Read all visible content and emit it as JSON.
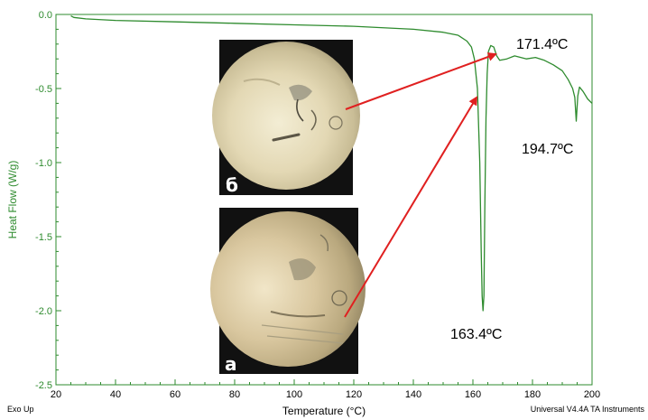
{
  "chart_data": {
    "type": "line",
    "xlabel": "Temperature (°C)",
    "ylabel": "Heat Flow (W/g)",
    "xlim": [
      20,
      200
    ],
    "ylim": [
      -2.5,
      0.0
    ],
    "x_ticks": [
      20,
      40,
      60,
      80,
      100,
      120,
      140,
      160,
      180,
      200
    ],
    "y_ticks": [
      0.0,
      -0.5,
      -1.0,
      -1.5,
      -2.0,
      -2.5
    ],
    "y_tick_labels": [
      "0.0",
      "-0.5",
      "-1.0",
      "-1.5",
      "-2.0",
      "-2.5"
    ],
    "grid": false,
    "series": [
      {
        "color": "#2e8b2e",
        "x": [
          25,
          26,
          30,
          40,
          60,
          80,
          100,
          120,
          140,
          150,
          155,
          158,
          159.5,
          160.5,
          161.5,
          162.3,
          162.8,
          163.1,
          163.4,
          163.7,
          164.0,
          164.4,
          164.8,
          165.2,
          166.0,
          167.0,
          168.0,
          169.0,
          171.4,
          174.0,
          178.0,
          181.0,
          184.0,
          187.0,
          190.0,
          192.0,
          193.5,
          194.2,
          194.7,
          195.2,
          195.8,
          197.0,
          198.5,
          200.0
        ],
        "y": [
          -0.01,
          -0.02,
          -0.03,
          -0.04,
          -0.05,
          -0.06,
          -0.07,
          -0.08,
          -0.1,
          -0.12,
          -0.14,
          -0.18,
          -0.22,
          -0.3,
          -0.5,
          -1.0,
          -1.6,
          -1.9,
          -2.0,
          -1.9,
          -1.3,
          -0.7,
          -0.4,
          -0.25,
          -0.21,
          -0.22,
          -0.28,
          -0.31,
          -0.3,
          -0.28,
          -0.3,
          -0.29,
          -0.31,
          -0.34,
          -0.38,
          -0.44,
          -0.5,
          -0.56,
          -0.72,
          -0.55,
          -0.49,
          -0.52,
          -0.57,
          -0.6
        ]
      }
    ],
    "annotations": [
      {
        "label": "171.4ºC",
        "x": 171.4,
        "y": -0.28
      },
      {
        "label": "163.4ºC",
        "x": 163.4,
        "y": -2.0
      },
      {
        "label": "194.7ºC",
        "x": 194.7,
        "y": -0.72
      }
    ],
    "inset_labels": [
      "б",
      "а"
    ],
    "footer_left": "Exo Up",
    "footer_right": "Universal V4.4A TA Instruments"
  },
  "colors": {
    "curve": "#2e8b2e",
    "axis": "#2e8b2e",
    "arrow": "#e02020"
  }
}
